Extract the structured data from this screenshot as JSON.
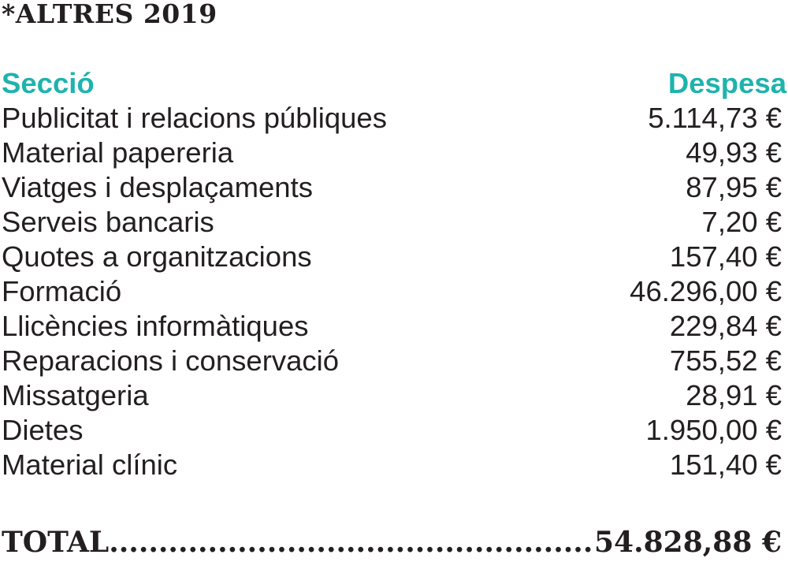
{
  "title": "*ALTRES 2019",
  "table": {
    "header": {
      "section_label": "Secció",
      "amount_label": "Despesa"
    },
    "rows": [
      {
        "section": "Publicitat i relacions públiques",
        "amount": "5.114,73 €"
      },
      {
        "section": "Material papereria",
        "amount": "49,93 €"
      },
      {
        "section": "Viatges i desplaçaments",
        "amount": "87,95 €"
      },
      {
        "section": "Serveis bancaris",
        "amount": "7,20 €"
      },
      {
        "section": "Quotes a organitzacions",
        "amount": "157,40 €"
      },
      {
        "section": "Formació",
        "amount": "46.296,00 €"
      },
      {
        "section": "Llicències informàtiques",
        "amount": "229,84 €"
      },
      {
        "section": "Reparacions i conservació",
        "amount": "755,52 €"
      },
      {
        "section": "Missatgeria",
        "amount": "28,91 €"
      },
      {
        "section": "Dietes",
        "amount": "1.950,00 €"
      },
      {
        "section": "Material clínic",
        "amount": "151,40 €"
      }
    ]
  },
  "total": {
    "label": "TOTAL",
    "value": "54.828,88 €"
  },
  "colors": {
    "header_accent": "#1fb3ad",
    "text": "#231f20"
  }
}
